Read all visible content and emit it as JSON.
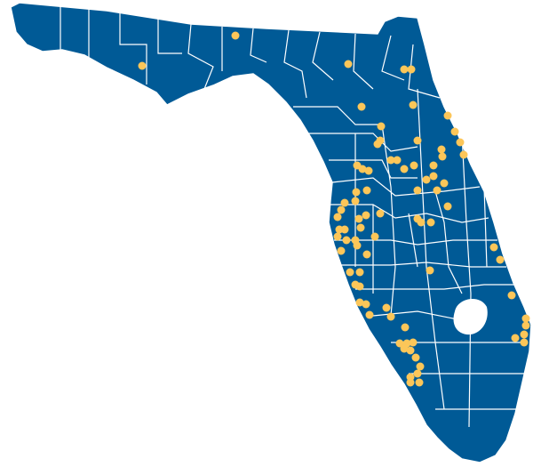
{
  "map": {
    "region": "Florida",
    "land_color": "#005a96",
    "border_color": "#ffffff",
    "marker_color": "#fcc659",
    "background_color": "#ffffff"
  }
}
